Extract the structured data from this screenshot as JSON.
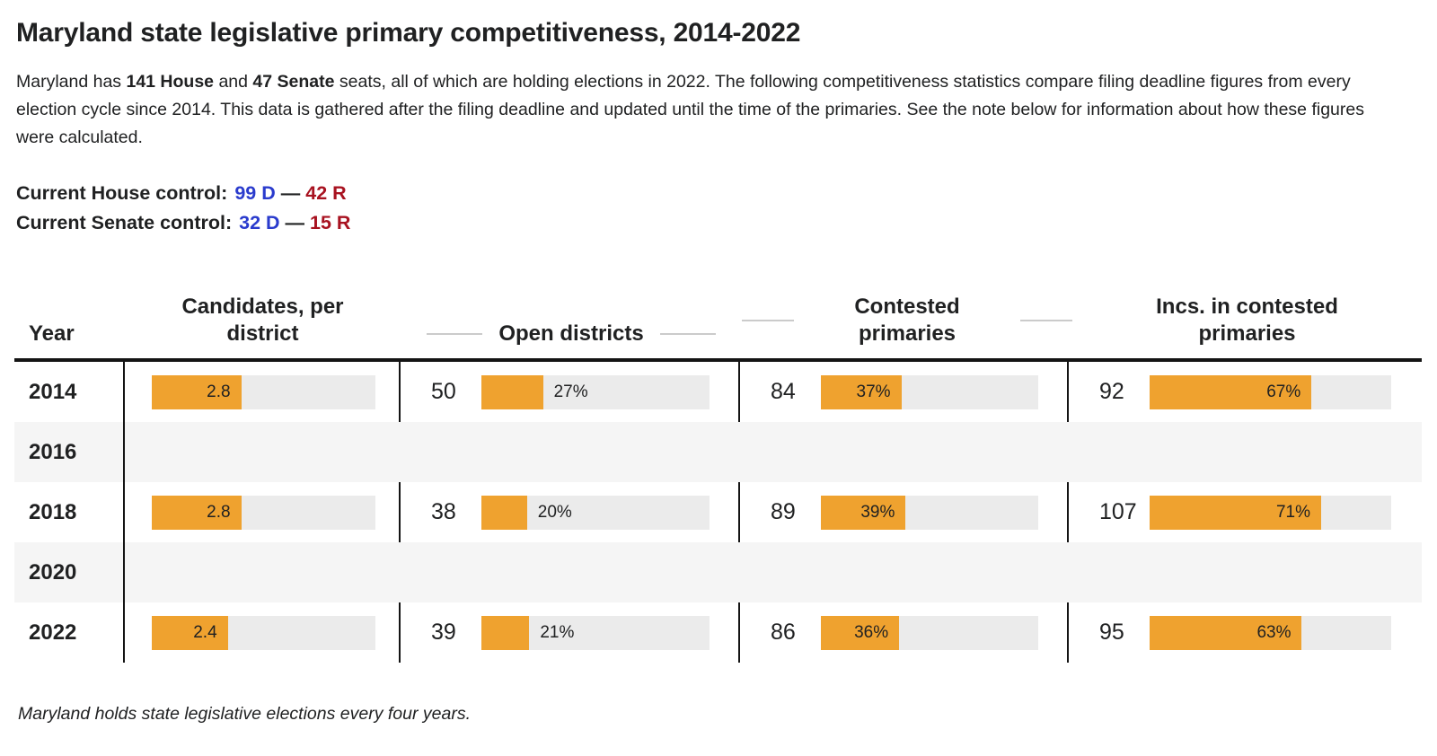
{
  "page": {
    "title": "Maryland state legislative primary competitiveness, 2014-2022",
    "intro": {
      "pre": "Maryland has ",
      "house_bold": "141 House",
      "mid": " and ",
      "senate_bold": "47 Senate",
      "post": " seats, all of which are holding elections in 2022. The following competitiveness statistics compare filing deadline figures from every election cycle since 2014. This data is gathered after the filing deadline and updated until the time of the primaries. See the note below for information about how these figures were calculated."
    },
    "control": {
      "house_label": "Current House control:",
      "house_dem": "99 D",
      "dash": "—",
      "house_rep": "42 R",
      "senate_label": "Current Senate control:",
      "senate_dem": "32 D",
      "senate_rep": "15 R"
    }
  },
  "colors": {
    "accent_orange": "#efa22f",
    "bar_track_gray": "#ebebeb",
    "row_stripe_gray": "#f5f5f5",
    "dem_blue": "#2a3bcd",
    "rep_red": "#a81220",
    "text_dark": "#202122",
    "table_border_black": "#141414"
  },
  "table_headers": {
    "year": "Year",
    "candidates": "Candidates, per district",
    "open": "Open districts",
    "contested": "Contested primaries",
    "incs": "Incs. in contested primaries"
  },
  "chart_data": {
    "type": "table",
    "title": "Maryland state legislative primary competitiveness, 2014-2022",
    "columns": [
      "Year",
      "Candidates, per district",
      "Open districts",
      "Contested primaries",
      "Incs. in contested primaries"
    ],
    "candidates_bar_scale_max": 7,
    "note": "Maryland holds state legislative elections every four years.",
    "rows": [
      {
        "year": "2014",
        "empty": false,
        "cols": [
          {
            "bar_label": "2.8",
            "fill": 40,
            "inside": true
          },
          {
            "num": "50",
            "bar_label": "27%",
            "fill": 27,
            "inside": false
          },
          {
            "num": "84",
            "bar_label": "37%",
            "fill": 37,
            "inside": true
          },
          {
            "num": "92",
            "bar_label": "67%",
            "fill": 67,
            "inside": true
          }
        ]
      },
      {
        "year": "2016",
        "empty": true,
        "cols": []
      },
      {
        "year": "2018",
        "empty": false,
        "cols": [
          {
            "bar_label": "2.8",
            "fill": 40,
            "inside": true
          },
          {
            "num": "38",
            "bar_label": "20%",
            "fill": 20,
            "inside": false
          },
          {
            "num": "89",
            "bar_label": "39%",
            "fill": 39,
            "inside": true
          },
          {
            "num": "107",
            "bar_label": "71%",
            "fill": 71,
            "inside": true
          }
        ]
      },
      {
        "year": "2020",
        "empty": true,
        "cols": []
      },
      {
        "year": "2022",
        "empty": false,
        "cols": [
          {
            "bar_label": "2.4",
            "fill": 34,
            "inside": true
          },
          {
            "num": "39",
            "bar_label": "21%",
            "fill": 21,
            "inside": false
          },
          {
            "num": "86",
            "bar_label": "36%",
            "fill": 36,
            "inside": true
          },
          {
            "num": "95",
            "bar_label": "63%",
            "fill": 63,
            "inside": true
          }
        ]
      }
    ]
  }
}
